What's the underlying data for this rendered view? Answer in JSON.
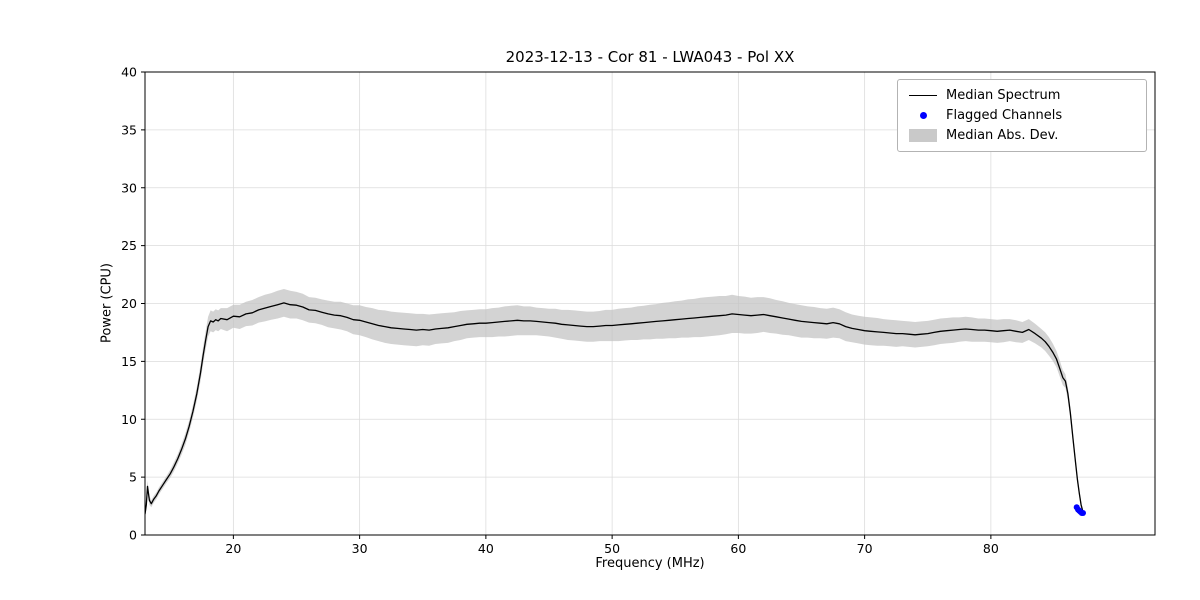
{
  "chart_data": {
    "type": "line",
    "title": "2023-12-13 - Cor 81 - LWA043 - Pol XX",
    "xlabel": "Frequency (MHz)",
    "ylabel": "Power (CPU)",
    "xlim": [
      13.0,
      93.0
    ],
    "ylim": [
      0,
      40
    ],
    "xticks": [
      20,
      30,
      40,
      50,
      60,
      70,
      80
    ],
    "yticks": [
      0,
      5,
      10,
      15,
      20,
      25,
      30,
      35,
      40
    ],
    "grid": true,
    "legend_position": "upper right",
    "legend_entries": [
      "Median Spectrum",
      "Flagged Channels",
      "Median Abs. Dev."
    ],
    "colors": {
      "line": "#000000",
      "flagged": "#0000ff",
      "band": "#c4c4c4",
      "grid": "#dcdcdc"
    },
    "x": [
      13.0,
      13.1,
      13.2,
      13.35,
      13.5,
      13.7,
      13.9,
      14.1,
      14.4,
      14.7,
      15.0,
      15.3,
      15.6,
      15.9,
      16.2,
      16.5,
      16.8,
      17.1,
      17.4,
      17.6,
      17.8,
      18.0,
      18.2,
      18.4,
      18.6,
      18.8,
      19.0,
      19.5,
      20.0,
      20.5,
      21.0,
      21.5,
      22.0,
      22.5,
      23.0,
      23.5,
      24.0,
      24.5,
      25.0,
      25.5,
      26.0,
      26.5,
      27.0,
      27.5,
      28.0,
      28.5,
      29.0,
      29.5,
      30.0,
      30.5,
      31.0,
      31.5,
      32.0,
      32.5,
      33.0,
      33.5,
      34.0,
      34.5,
      35.0,
      35.5,
      36.0,
      36.5,
      37.0,
      37.5,
      38.0,
      38.5,
      39.0,
      39.5,
      40.0,
      40.5,
      41.0,
      41.5,
      42.0,
      42.5,
      43.0,
      43.5,
      44.0,
      44.5,
      45.0,
      45.5,
      46.0,
      46.5,
      47.0,
      47.5,
      48.0,
      48.5,
      49.0,
      49.5,
      50.0,
      50.5,
      51.0,
      51.5,
      52.0,
      52.5,
      53.0,
      53.5,
      54.0,
      54.5,
      55.0,
      55.5,
      56.0,
      56.5,
      57.0,
      57.5,
      58.0,
      58.5,
      59.0,
      59.5,
      60.0,
      60.5,
      61.0,
      61.5,
      62.0,
      62.5,
      63.0,
      63.5,
      64.0,
      64.5,
      65.0,
      65.5,
      66.0,
      66.5,
      67.0,
      67.5,
      68.0,
      68.5,
      69.0,
      69.5,
      70.0,
      70.5,
      71.0,
      71.5,
      72.0,
      72.5,
      73.0,
      73.5,
      74.0,
      74.5,
      75.0,
      75.5,
      76.0,
      76.5,
      77.0,
      77.5,
      78.0,
      78.5,
      79.0,
      79.5,
      80.0,
      80.5,
      81.0,
      81.5,
      82.0,
      82.5,
      83.0,
      83.5,
      84.0,
      84.3,
      84.6,
      84.9,
      85.2,
      85.45,
      85.7,
      85.9,
      86.1,
      86.3,
      86.5,
      86.7,
      86.85,
      87.0,
      87.15,
      87.3
    ],
    "series": [
      {
        "name": "Median Spectrum",
        "type": "line",
        "color": "#000000",
        "values": [
          1.8,
          2.6,
          4.2,
          3.0,
          2.7,
          3.1,
          3.4,
          3.8,
          4.3,
          4.8,
          5.3,
          5.9,
          6.6,
          7.4,
          8.3,
          9.4,
          10.7,
          12.2,
          14.0,
          15.5,
          16.8,
          18.0,
          18.5,
          18.4,
          18.6,
          18.5,
          18.7,
          18.6,
          18.9,
          18.85,
          19.1,
          19.2,
          19.45,
          19.6,
          19.75,
          19.9,
          20.05,
          19.9,
          19.85,
          19.7,
          19.45,
          19.4,
          19.25,
          19.1,
          19.0,
          18.95,
          18.8,
          18.6,
          18.55,
          18.4,
          18.25,
          18.1,
          18.0,
          17.9,
          17.85,
          17.8,
          17.75,
          17.7,
          17.75,
          17.7,
          17.8,
          17.85,
          17.9,
          18.0,
          18.1,
          18.2,
          18.25,
          18.3,
          18.3,
          18.35,
          18.4,
          18.45,
          18.5,
          18.55,
          18.5,
          18.5,
          18.45,
          18.4,
          18.35,
          18.3,
          18.2,
          18.15,
          18.1,
          18.05,
          18.0,
          18.0,
          18.05,
          18.1,
          18.1,
          18.15,
          18.2,
          18.25,
          18.3,
          18.35,
          18.4,
          18.45,
          18.5,
          18.55,
          18.6,
          18.65,
          18.7,
          18.75,
          18.8,
          18.85,
          18.9,
          18.95,
          19.0,
          19.1,
          19.05,
          19.0,
          18.95,
          19.0,
          19.05,
          18.95,
          18.85,
          18.75,
          18.65,
          18.55,
          18.45,
          18.4,
          18.35,
          18.3,
          18.25,
          18.35,
          18.25,
          18.0,
          17.85,
          17.75,
          17.65,
          17.6,
          17.55,
          17.5,
          17.45,
          17.4,
          17.4,
          17.35,
          17.3,
          17.35,
          17.4,
          17.5,
          17.6,
          17.65,
          17.7,
          17.75,
          17.8,
          17.75,
          17.7,
          17.7,
          17.65,
          17.6,
          17.65,
          17.7,
          17.6,
          17.5,
          17.75,
          17.4,
          17.0,
          16.7,
          16.3,
          15.8,
          15.2,
          14.4,
          13.6,
          13.3,
          12.2,
          10.5,
          8.4,
          6.3,
          4.8,
          3.6,
          2.6,
          2.0
        ]
      },
      {
        "name": "Median Abs. Dev.",
        "type": "band",
        "color": "#c4c4c4",
        "mad": [
          0.3,
          0.4,
          0.5,
          0.4,
          0.3,
          0.3,
          0.3,
          0.3,
          0.3,
          0.3,
          0.35,
          0.4,
          0.4,
          0.45,
          0.5,
          0.5,
          0.55,
          0.6,
          0.7,
          0.75,
          0.8,
          0.85,
          0.9,
          0.9,
          0.9,
          0.9,
          0.9,
          1.0,
          1.0,
          1.05,
          1.05,
          1.1,
          1.1,
          1.15,
          1.15,
          1.2,
          1.2,
          1.2,
          1.15,
          1.15,
          1.1,
          1.1,
          1.1,
          1.15,
          1.15,
          1.2,
          1.2,
          1.25,
          1.3,
          1.3,
          1.35,
          1.35,
          1.4,
          1.4,
          1.4,
          1.4,
          1.4,
          1.4,
          1.35,
          1.35,
          1.3,
          1.3,
          1.3,
          1.25,
          1.25,
          1.2,
          1.2,
          1.2,
          1.2,
          1.25,
          1.25,
          1.3,
          1.3,
          1.3,
          1.25,
          1.25,
          1.2,
          1.2,
          1.2,
          1.25,
          1.25,
          1.3,
          1.3,
          1.3,
          1.3,
          1.3,
          1.3,
          1.35,
          1.35,
          1.4,
          1.4,
          1.4,
          1.45,
          1.45,
          1.5,
          1.5,
          1.55,
          1.55,
          1.6,
          1.6,
          1.65,
          1.65,
          1.7,
          1.7,
          1.7,
          1.7,
          1.65,
          1.65,
          1.6,
          1.6,
          1.55,
          1.55,
          1.5,
          1.5,
          1.45,
          1.45,
          1.4,
          1.4,
          1.4,
          1.35,
          1.35,
          1.3,
          1.3,
          1.3,
          1.25,
          1.25,
          1.2,
          1.2,
          1.2,
          1.2,
          1.2,
          1.15,
          1.15,
          1.15,
          1.1,
          1.1,
          1.1,
          1.1,
          1.1,
          1.1,
          1.1,
          1.1,
          1.1,
          1.05,
          1.05,
          1.05,
          1.0,
          1.0,
          1.0,
          1.0,
          1.0,
          0.95,
          0.95,
          0.9,
          0.9,
          0.85,
          0.8,
          0.8,
          0.8,
          0.75,
          0.7,
          0.7,
          0.65,
          0.6,
          0.55,
          0.5,
          0.45,
          0.4,
          0.35,
          0.3,
          0.25,
          0.2
        ]
      },
      {
        "name": "Flagged Channels",
        "type": "scatter",
        "color": "#0000ff",
        "x": [
          86.8,
          86.9,
          87.0,
          87.1,
          87.2,
          87.3
        ],
        "y": [
          2.4,
          2.2,
          2.1,
          2.0,
          1.9,
          1.9
        ]
      }
    ]
  }
}
